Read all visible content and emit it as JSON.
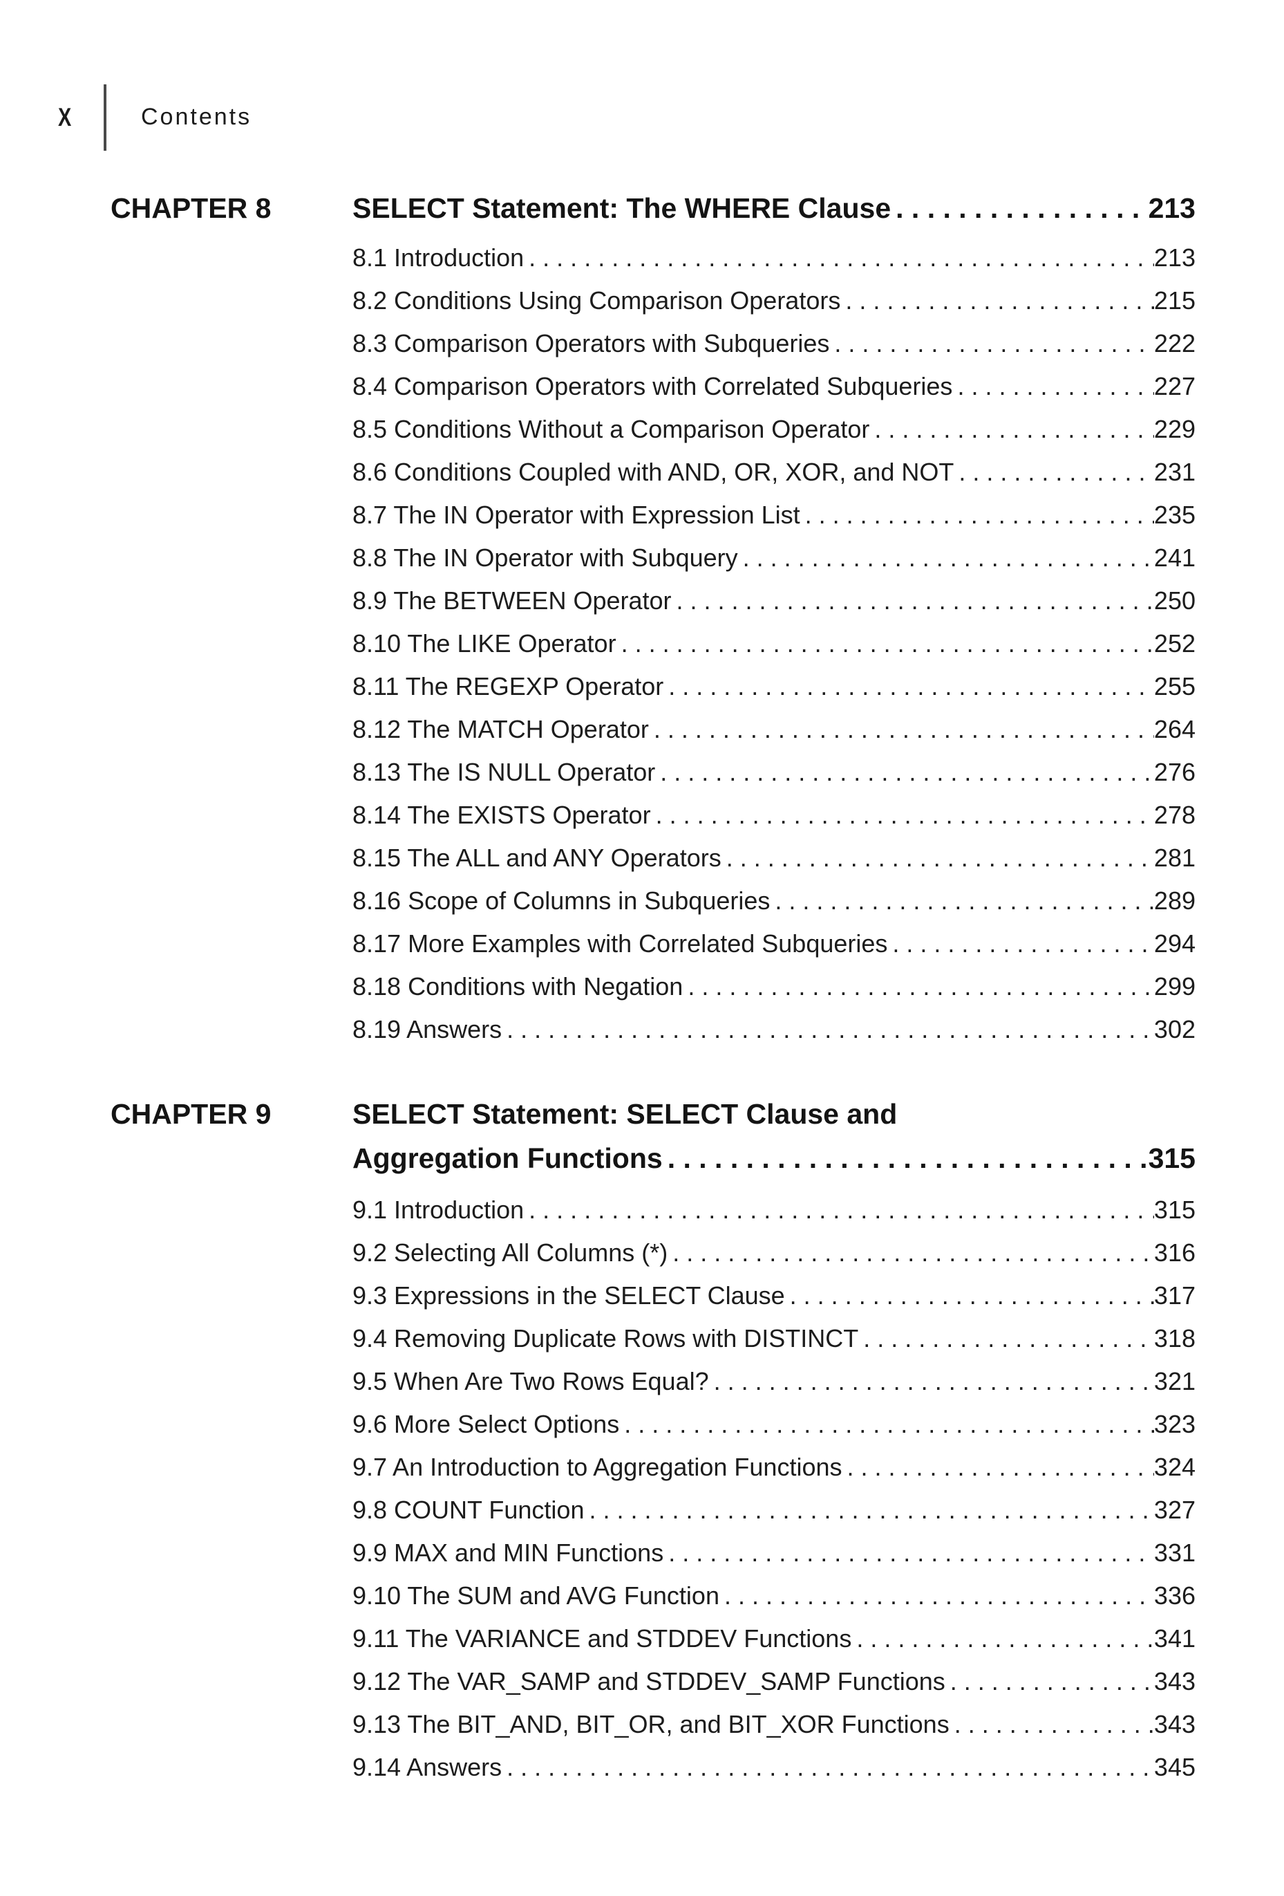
{
  "header": {
    "page_number": "X",
    "title": "Contents"
  },
  "colors": {
    "text": "#1c1c1c",
    "rule": "#4a4a4a",
    "background": "#ffffff"
  },
  "toc": {
    "chapters": [
      {
        "label": "CHAPTER 8",
        "title": "SELECT Statement: The WHERE Clause",
        "page": "213",
        "sections": [
          {
            "title": "8.1 Introduction",
            "page": "213"
          },
          {
            "title": "8.2 Conditions Using Comparison Operators",
            "page": "215"
          },
          {
            "title": "8.3 Comparison Operators with Subqueries",
            "page": "222"
          },
          {
            "title": "8.4 Comparison Operators with Correlated Subqueries",
            "page": "227"
          },
          {
            "title": "8.5 Conditions Without a Comparison Operator",
            "page": "229"
          },
          {
            "title": "8.6 Conditions Coupled with AND, OR, XOR, and NOT",
            "page": "231"
          },
          {
            "title": "8.7 The IN Operator with Expression List",
            "page": "235"
          },
          {
            "title": "8.8 The IN Operator with Subquery",
            "page": "241"
          },
          {
            "title": "8.9 The BETWEEN Operator",
            "page": "250"
          },
          {
            "title": "8.10 The LIKE Operator",
            "page": "252"
          },
          {
            "title": "8.11 The REGEXP Operator",
            "page": "255"
          },
          {
            "title": "8.12 The MATCH Operator",
            "page": "264"
          },
          {
            "title": "8.13 The IS NULL Operator",
            "page": "276"
          },
          {
            "title": "8.14 The EXISTS Operator",
            "page": "278"
          },
          {
            "title": "8.15 The ALL and ANY Operators",
            "page": "281"
          },
          {
            "title": "8.16 Scope of Columns in Subqueries",
            "page": "289"
          },
          {
            "title": "8.17 More Examples with Correlated Subqueries",
            "page": "294"
          },
          {
            "title": "8.18 Conditions with Negation",
            "page": "299"
          },
          {
            "title": "8.19 Answers",
            "page": "302"
          }
        ]
      },
      {
        "label": "CHAPTER 9",
        "title": "SELECT Statement: SELECT Clause and",
        "title_line2": "Aggregation Functions",
        "page": "315",
        "sections": [
          {
            "title": "9.1 Introduction",
            "page": "315"
          },
          {
            "title": "9.2 Selecting All Columns (*)",
            "page": "316"
          },
          {
            "title": "9.3 Expressions in the SELECT Clause",
            "page": "317"
          },
          {
            "title": "9.4 Removing Duplicate Rows with DISTINCT",
            "page": "318"
          },
          {
            "title": "9.5 When Are Two Rows Equal?",
            "page": "321"
          },
          {
            "title": "9.6 More Select Options",
            "page": "323"
          },
          {
            "title": "9.7 An Introduction to Aggregation Functions",
            "page": "324"
          },
          {
            "title": "9.8 COUNT Function",
            "page": "327"
          },
          {
            "title": "9.9 MAX and MIN Functions",
            "page": "331"
          },
          {
            "title": "9.10 The SUM and AVG Function",
            "page": "336"
          },
          {
            "title": "9.11 The VARIANCE and STDDEV Functions",
            "page": "341"
          },
          {
            "title": "9.12 The VAR_SAMP and STDDEV_SAMP Functions",
            "page": "343"
          },
          {
            "title": "9.13 The BIT_AND, BIT_OR, and BIT_XOR Functions",
            "page": "343"
          },
          {
            "title": "9.14 Answers",
            "page": "345"
          }
        ]
      }
    ]
  }
}
